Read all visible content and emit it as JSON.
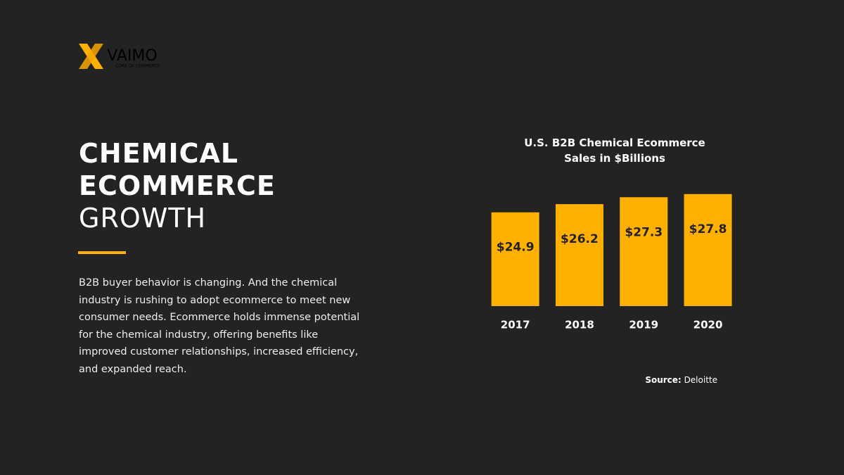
{
  "logo": {
    "name": "VAIMO",
    "tagline": "CORE OF COMMERCE"
  },
  "heading": {
    "lines": [
      "CHEMICAL",
      "ECOMMERCE"
    ],
    "light": "GROWTH"
  },
  "body": "B2B buyer behavior is changing. And the chemical industry is rushing to adopt ecommerce to meet new consumer needs. Ecommerce holds immense potential for the chemical industry, offering benefits like improved customer relationships, increased efficiency, and expanded reach.",
  "chart_data": {
    "type": "bar",
    "title": "U.S. B2B Chemical Ecommerce Sales in $Billions",
    "categories": [
      "2017",
      "2018",
      "2019",
      "2020"
    ],
    "values": [
      24.9,
      26.2,
      27.3,
      27.8
    ],
    "value_labels": [
      "$24.9",
      "$26.2",
      "$27.3",
      "$27.8"
    ],
    "color": "#ffb000",
    "ylim": [
      10,
      28
    ],
    "source_label": "Source:",
    "source": "Deloitte"
  }
}
